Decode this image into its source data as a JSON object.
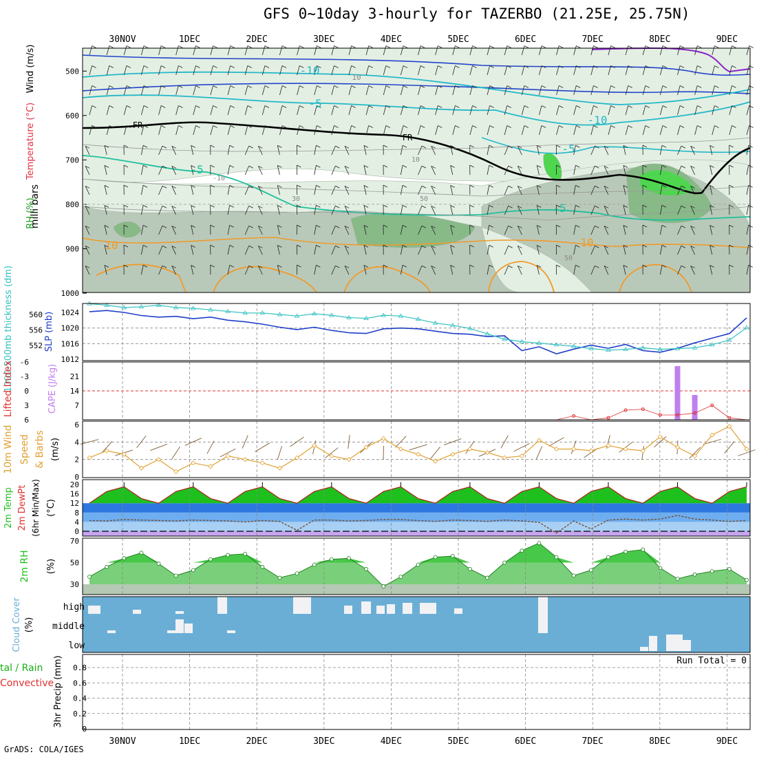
{
  "title": "GFS 0~10day 3-hourly for TAZERBO (21.25E, 25.75N)",
  "footer": "GrADS: COLA/IGES",
  "colors": {
    "rh_light": "#e3efe3",
    "rh_mid": "#b9c9b9",
    "rh_dark": "#88ba88",
    "rh_green": "#4fd64f",
    "temp_cyan": "#22b8c8",
    "temp_teal": "#1fbf9a",
    "temp_orange": "#f09a2a",
    "temp_blue": "#2244cc",
    "temp_purple": "#8a22c8",
    "slp": "#1e3ec8",
    "thickness": "#33c0c0",
    "cape": "#c07ff0",
    "li": "#e03030",
    "wind": "#e0a030",
    "t2m_green": "#1ec01e",
    "dew_blue": "#2c78e0",
    "cloud": "#6aaed6"
  },
  "chart_data": [
    {
      "type": "contour",
      "id": "upper_air",
      "title": "Wind (m/s)  Temperature (°C)  RH (%)",
      "ylabel": "milli bars",
      "ylabel_parts": [
        "RH (%)",
        "Temperature (°C)",
        "Wind (m/s)"
      ],
      "yticks": [
        "500",
        "600",
        "700",
        "800",
        "900",
        "1000"
      ],
      "ylim": [
        1000,
        450
      ],
      "dates": [
        "30NOV",
        "1DEC",
        "2DEC",
        "3DEC",
        "4DEC",
        "5DEC",
        "6DEC",
        "7DEC",
        "8DEC",
        "9DEC"
      ],
      "contour_labels": [
        "-10",
        "10",
        "-5",
        "FR",
        "FR",
        "-10",
        "-5",
        "10",
        "-5",
        "-10",
        "30",
        "50",
        "-5",
        "10",
        "10",
        "50"
      ]
    },
    {
      "type": "line",
      "id": "slp_thickness",
      "ylabel_left": "1000-500mb thickness (dm)",
      "ylabel_right": "SLP (mb)",
      "left_ticks": [
        "560",
        "556",
        "552"
      ],
      "right_ticks": [
        "1024",
        "1020",
        "1016",
        "1012"
      ],
      "x": [
        "29NOV18",
        "30NOV00",
        "30NOV06",
        "30NOV12",
        "30NOV18",
        "1DEC00",
        "1DEC06",
        "1DEC12",
        "1DEC18",
        "2DEC00",
        "2DEC06",
        "2DEC12",
        "2DEC18",
        "3DEC00",
        "3DEC06",
        "3DEC12",
        "3DEC18",
        "4DEC00",
        "4DEC06",
        "4DEC12",
        "4DEC18",
        "5DEC00",
        "5DEC06",
        "5DEC12",
        "5DEC18",
        "6DEC00",
        "6DEC06",
        "6DEC12",
        "6DEC18",
        "7DEC00",
        "7DEC06",
        "7DEC12",
        "7DEC18",
        "8DEC00",
        "8DEC06",
        "8DEC12",
        "8DEC18",
        "9DEC00",
        "9DEC06"
      ],
      "series": [
        {
          "name": "SLP",
          "values": [
            1024.2,
            1024.5,
            1024.0,
            1023.2,
            1022.8,
            1023.0,
            1022.4,
            1022.8,
            1022.0,
            1021.6,
            1021.0,
            1020.2,
            1019.6,
            1020.2,
            1019.4,
            1018.8,
            1018.6,
            1019.8,
            1020.0,
            1019.8,
            1019.2,
            1018.6,
            1018.4,
            1017.8,
            1018.0,
            1014.2,
            1015.2,
            1013.4,
            1014.6,
            1015.6,
            1014.8,
            1015.8,
            1014.2,
            1013.8,
            1014.8,
            1016.2,
            1017.4,
            1018.6,
            1022.6
          ]
        },
        {
          "name": "Thickness",
          "values": [
            562.8,
            562.4,
            561.8,
            562.0,
            562.4,
            561.8,
            561.6,
            561.2,
            560.8,
            560.4,
            560.4,
            560.0,
            559.6,
            560.2,
            559.8,
            559.2,
            559.0,
            559.8,
            559.6,
            558.8,
            557.8,
            557.2,
            556.4,
            555.0,
            553.6,
            553.0,
            552.6,
            552.2,
            551.8,
            551.2,
            550.8,
            551.0,
            551.4,
            551.0,
            551.2,
            551.4,
            552.2,
            553.4,
            556.6
          ]
        }
      ]
    },
    {
      "type": "bar",
      "id": "cape_li",
      "ylabel_left": "Lifted Index",
      "ylabel_right": "CAPE (J/kg)",
      "li_ticks": [
        "-6",
        "-3",
        "0",
        "3",
        "6"
      ],
      "cape_ticks": [
        "21",
        "14",
        "7"
      ],
      "cape_bars": [
        {
          "time": "8DEC06",
          "value": 26
        },
        {
          "time": "8DEC12",
          "value": 12
        }
      ],
      "li_values": [
        6,
        6,
        6,
        6,
        6,
        6,
        6,
        6,
        6,
        6,
        6,
        6,
        6,
        6,
        6,
        6,
        6,
        6,
        6,
        6,
        6,
        6,
        6,
        6,
        6,
        6,
        6,
        6,
        5.2,
        6,
        5.6,
        4,
        3.8,
        5,
        5,
        4.6,
        3,
        5.6,
        6
      ]
    },
    {
      "type": "line",
      "id": "wind10m",
      "ylabel": "10m Wind Speed & Barbs (m/s)",
      "yticks": [
        "0",
        "2",
        "4",
        "6"
      ],
      "ylim": [
        0,
        6
      ],
      "series": [
        {
          "name": "10m wind speed",
          "values": [
            2.2,
            3,
            2.6,
            1,
            2,
            0.6,
            1.6,
            1.2,
            2.4,
            2,
            1.6,
            1,
            2.2,
            3.6,
            2.4,
            2,
            3.4,
            4.4,
            3.2,
            2.6,
            1.8,
            2.6,
            3.2,
            2.8,
            2.2,
            2.4,
            4.2,
            3.2,
            3.2,
            3,
            3.6,
            3.2,
            3,
            4.6,
            3.4,
            2.4,
            4.8,
            5.8,
            3.2
          ]
        }
      ]
    },
    {
      "type": "area",
      "id": "t2m",
      "ylabel": "2m Temp  2m DewPt  (6hr Min/Max) (°C)",
      "ylabel_parts": [
        "2m Temp",
        "2m DewPt",
        "(6hr Min/Max)",
        "(°C)"
      ],
      "yticks": [
        "20",
        "16",
        "12",
        "8",
        "4",
        "0"
      ],
      "ylim": [
        -2,
        22
      ],
      "series": [
        {
          "name": "2m Temp",
          "values": [
            12,
            17,
            19,
            14,
            12,
            17,
            19,
            14,
            12,
            17,
            19,
            14,
            12,
            17,
            19,
            14,
            12,
            17,
            19,
            14,
            12,
            17,
            19,
            14,
            12,
            17,
            19,
            14,
            12,
            17,
            19,
            14,
            12,
            17,
            19,
            14,
            12,
            17,
            19
          ]
        },
        {
          "name": "2m DewPt",
          "values": [
            4.6,
            4.4,
            5,
            4.8,
            4.6,
            4.4,
            4.8,
            4.6,
            4.4,
            4,
            4.6,
            4.2,
            0.4,
            4.8,
            4.8,
            4.4,
            4.6,
            5,
            5,
            4.6,
            4.2,
            4.8,
            4.6,
            4.2,
            4.8,
            4.4,
            3.8,
            -0.8,
            4.4,
            1,
            4.8,
            5.2,
            4.8,
            5.2,
            6.8,
            5.2,
            4.8,
            4.2,
            4.6
          ]
        }
      ]
    },
    {
      "type": "area",
      "id": "rh2m",
      "ylabel": "2m RH (%)",
      "yticks": [
        "70",
        "50",
        "30"
      ],
      "ylim": [
        20,
        72
      ],
      "series": [
        {
          "name": "2m RH",
          "values": [
            37,
            46,
            54,
            59,
            49,
            38,
            43,
            53,
            57,
            58,
            46,
            36,
            40,
            48,
            53,
            54,
            44,
            28,
            37,
            48,
            55,
            56,
            44,
            36,
            50,
            61,
            68,
            55,
            38,
            43,
            55,
            60,
            62,
            45,
            35,
            39,
            42,
            44,
            34
          ]
        }
      ]
    },
    {
      "type": "bar",
      "id": "cloud",
      "ylabel": "Cloud Cover (%)",
      "levels": [
        "high",
        "middle",
        "low"
      ],
      "description": "Cloud cover fraction (%) shown as white bars per level"
    },
    {
      "type": "bar",
      "id": "precip",
      "ylabel": "3hr Precip (mm)",
      "left_label": [
        "tal / Rain",
        "Convective"
      ],
      "yticks": [
        "0.8",
        "0.6",
        "0.4",
        "0.2",
        "0"
      ],
      "ylim": [
        0,
        0.9
      ],
      "run_total_label": "Run Total = 0",
      "values": []
    }
  ]
}
